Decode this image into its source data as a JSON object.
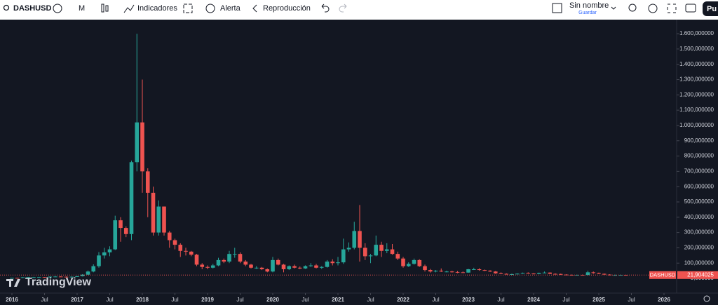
{
  "toolbar": {
    "symbol": "DASHUSD",
    "interval": "M",
    "indicators": "Indicadores",
    "alert": "Alerta",
    "replay": "Reproducción",
    "layout_name": "Sin nombre",
    "save": "Guardar",
    "publish": "Pu"
  },
  "watermark": "TradingView",
  "chart_data": {
    "type": "candlestick",
    "symbol": "DASHUSD",
    "up_color": "#26a69a",
    "down_color": "#ef5350",
    "x": [
      "2016-01",
      "2016-02",
      "2016-03",
      "2016-04",
      "2016-05",
      "2016-06",
      "2016-07",
      "2016-08",
      "2016-09",
      "2016-10",
      "2016-11",
      "2016-12",
      "2017-01",
      "2017-02",
      "2017-03",
      "2017-04",
      "2017-05",
      "2017-06",
      "2017-07",
      "2017-08",
      "2017-09",
      "2017-10",
      "2017-11",
      "2017-12",
      "2018-01",
      "2018-02",
      "2018-03",
      "2018-04",
      "2018-05",
      "2018-06",
      "2018-07",
      "2018-08",
      "2018-09",
      "2018-10",
      "2018-11",
      "2018-12",
      "2019-01",
      "2019-02",
      "2019-03",
      "2019-04",
      "2019-05",
      "2019-06",
      "2019-07",
      "2019-08",
      "2019-09",
      "2019-10",
      "2019-11",
      "2019-12",
      "2020-01",
      "2020-02",
      "2020-03",
      "2020-04",
      "2020-05",
      "2020-06",
      "2020-07",
      "2020-08",
      "2020-09",
      "2020-10",
      "2020-11",
      "2020-12",
      "2021-01",
      "2021-02",
      "2021-03",
      "2021-04",
      "2021-05",
      "2021-06",
      "2021-07",
      "2021-08",
      "2021-09",
      "2021-10",
      "2021-11",
      "2021-12",
      "2022-01",
      "2022-02",
      "2022-03",
      "2022-04",
      "2022-05",
      "2022-06",
      "2022-07",
      "2022-08",
      "2022-09",
      "2022-10",
      "2022-11",
      "2022-12",
      "2023-01",
      "2023-02",
      "2023-03",
      "2023-04",
      "2023-05",
      "2023-06",
      "2023-07",
      "2023-08",
      "2023-09",
      "2023-10",
      "2023-11",
      "2023-12",
      "2024-01",
      "2024-02",
      "2024-03",
      "2024-04",
      "2024-05",
      "2024-06",
      "2024-07",
      "2024-08",
      "2024-09",
      "2024-10",
      "2024-11",
      "2024-12",
      "2025-01",
      "2025-02",
      "2025-03",
      "2025-04",
      "2025-05",
      "2025-06"
    ],
    "open": [
      2.5,
      3.5,
      3.3,
      7.6,
      7.7,
      8.5,
      8.5,
      7.4,
      11.6,
      12.3,
      11.1,
      9.4,
      11.2,
      14.2,
      24.6,
      45,
      80,
      150,
      170,
      190,
      380,
      330,
      290,
      760,
      1020,
      700,
      560,
      300,
      470,
      300,
      250,
      220,
      180,
      175,
      155,
      90,
      75,
      70,
      85,
      120,
      110,
      160,
      160,
      110,
      90,
      70,
      70,
      60,
      45,
      120,
      90,
      60,
      80,
      70,
      65,
      80,
      85,
      70,
      75,
      110,
      100,
      105,
      190,
      200,
      310,
      200,
      145,
      150,
      220,
      180,
      190,
      160,
      130,
      80,
      95,
      120,
      80,
      55,
      45,
      50,
      45,
      45,
      42,
      40,
      38,
      60,
      60,
      55,
      50,
      45,
      33,
      30,
      27,
      28,
      31,
      35,
      32,
      29,
      35,
      38,
      30,
      29,
      25,
      23,
      22,
      23,
      22,
      40,
      35,
      30,
      25,
      22,
      22,
      23
    ],
    "high": [
      4,
      4.2,
      8.8,
      9,
      10,
      9.8,
      9.6,
      13,
      14.5,
      13.8,
      12.6,
      12.5,
      16,
      28,
      52,
      92,
      172,
      200,
      210,
      410,
      400,
      340,
      770,
      1600,
      1300,
      720,
      600,
      510,
      470,
      310,
      260,
      230,
      200,
      180,
      160,
      100,
      85,
      95,
      135,
      130,
      180,
      200,
      170,
      120,
      95,
      80,
      75,
      65,
      140,
      130,
      95,
      85,
      90,
      78,
      85,
      100,
      95,
      80,
      120,
      125,
      140,
      260,
      235,
      370,
      480,
      230,
      160,
      280,
      240,
      230,
      225,
      175,
      140,
      105,
      130,
      125,
      90,
      62,
      55,
      65,
      50,
      50,
      48,
      45,
      62,
      70,
      66,
      58,
      54,
      48,
      40,
      33,
      31,
      33,
      38,
      40,
      34,
      38,
      45,
      40,
      33,
      31,
      27,
      26,
      25,
      25,
      50,
      45,
      38,
      32,
      27,
      25,
      25,
      24
    ],
    "low": [
      2.1,
      2.8,
      2.9,
      6.5,
      6.6,
      7.2,
      6.3,
      6.5,
      10,
      9.6,
      8,
      8.2,
      9.8,
      12.5,
      22,
      40,
      70,
      130,
      145,
      185,
      240,
      270,
      250,
      700,
      560,
      400,
      280,
      280,
      280,
      200,
      190,
      140,
      150,
      145,
      80,
      60,
      60,
      65,
      80,
      100,
      100,
      135,
      100,
      80,
      65,
      62,
      55,
      40,
      40,
      85,
      40,
      55,
      65,
      60,
      62,
      75,
      65,
      62,
      70,
      85,
      85,
      95,
      175,
      190,
      110,
      120,
      100,
      145,
      140,
      165,
      155,
      120,
      70,
      75,
      90,
      75,
      45,
      38,
      40,
      42,
      40,
      38,
      34,
      36,
      37,
      55,
      50,
      48,
      42,
      30,
      28,
      25,
      26,
      27,
      30,
      30,
      26,
      27,
      33,
      28,
      26,
      23,
      20,
      20,
      20,
      20,
      21,
      30,
      28,
      22,
      19,
      19,
      20,
      21
    ],
    "close": [
      3.5,
      3.3,
      7.6,
      7.7,
      8.5,
      8.5,
      7.4,
      11.6,
      12.3,
      11.1,
      9.4,
      11.2,
      14.2,
      24.6,
      45,
      80,
      150,
      170,
      190,
      380,
      330,
      290,
      760,
      1020,
      700,
      560,
      300,
      470,
      300,
      250,
      220,
      180,
      175,
      155,
      90,
      75,
      70,
      85,
      120,
      110,
      160,
      160,
      110,
      90,
      70,
      70,
      60,
      45,
      120,
      90,
      60,
      80,
      70,
      65,
      80,
      85,
      70,
      75,
      110,
      100,
      105,
      190,
      200,
      310,
      200,
      145,
      150,
      220,
      180,
      190,
      160,
      130,
      80,
      95,
      120,
      80,
      55,
      45,
      50,
      45,
      45,
      42,
      40,
      38,
      60,
      60,
      55,
      50,
      45,
      33,
      30,
      27,
      28,
      31,
      35,
      32,
      29,
      35,
      38,
      30,
      29,
      25,
      23,
      22,
      23,
      22,
      40,
      35,
      30,
      25,
      22,
      22,
      23,
      21.904025
    ],
    "last_price_label": "21,904025",
    "ylim": [
      -96,
      1692
    ],
    "yticks": [
      {
        "value": 0,
        "label": "0,000000"
      },
      {
        "value": 100,
        "label": "100,000000"
      },
      {
        "value": 200,
        "label": "200,000000"
      },
      {
        "value": 300,
        "label": "300,000000"
      },
      {
        "value": 400,
        "label": "400,000000"
      },
      {
        "value": 500,
        "label": "500,000000"
      },
      {
        "value": 600,
        "label": "600,000000"
      },
      {
        "value": 700,
        "label": "700,000000"
      },
      {
        "value": 800,
        "label": "800,000000"
      },
      {
        "value": 900,
        "label": "900,000000"
      },
      {
        "value": 1000,
        "label": "1.000,000000"
      },
      {
        "value": 1100,
        "label": "1.100,000000"
      },
      {
        "value": 1200,
        "label": "1.200,000000"
      },
      {
        "value": 1300,
        "label": "1.300,000000"
      },
      {
        "value": 1400,
        "label": "1.400,000000"
      },
      {
        "value": 1500,
        "label": "1.500,000000"
      },
      {
        "value": 1600,
        "label": "1.600,000000"
      }
    ],
    "xticks": [
      {
        "value": "2016-01",
        "label": "2016"
      },
      {
        "value": "2016-07",
        "label": "Jul"
      },
      {
        "value": "2017-01",
        "label": "2017"
      },
      {
        "value": "2017-07",
        "label": "Jul"
      },
      {
        "value": "2018-01",
        "label": "2018"
      },
      {
        "value": "2018-07",
        "label": "Jul"
      },
      {
        "value": "2019-01",
        "label": "2019"
      },
      {
        "value": "2019-07",
        "label": "Jul"
      },
      {
        "value": "2020-01",
        "label": "2020"
      },
      {
        "value": "2020-07",
        "label": "Jul"
      },
      {
        "value": "2021-01",
        "label": "2021"
      },
      {
        "value": "2021-07",
        "label": "Jul"
      },
      {
        "value": "2022-01",
        "label": "2022"
      },
      {
        "value": "2022-07",
        "label": "Jul"
      },
      {
        "value": "2023-01",
        "label": "2023"
      },
      {
        "value": "2023-07",
        "label": "Jul"
      },
      {
        "value": "2024-01",
        "label": "2024"
      },
      {
        "value": "2024-07",
        "label": "Jul"
      },
      {
        "value": "2025-01",
        "label": "2025"
      },
      {
        "value": "2025-07",
        "label": "Jul"
      },
      {
        "value": "2026-01",
        "label": "2026"
      }
    ]
  }
}
